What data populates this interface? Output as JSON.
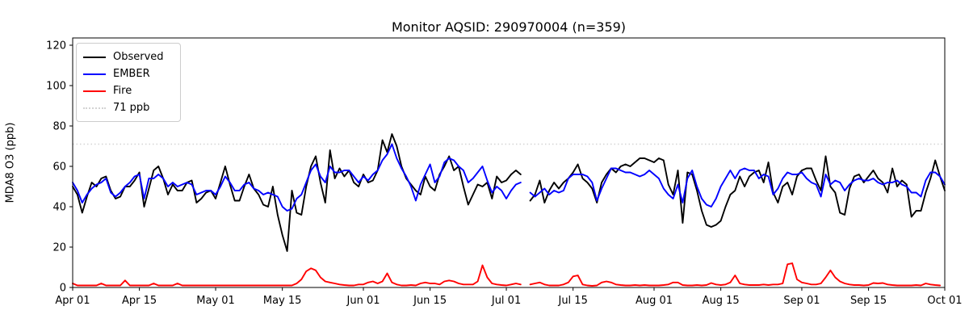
{
  "title": "Monitor AQSID: 290970004 (n=359)",
  "legend": {
    "entries": [
      {
        "label": "Observed",
        "color": "#000000",
        "style": "solid"
      },
      {
        "label": "EMBER",
        "color": "#0000ff",
        "style": "solid"
      },
      {
        "label": "Fire",
        "color": "#ff0000",
        "style": "solid"
      },
      {
        "label": "71 ppb",
        "color": "#d3d3d3",
        "style": "dotted"
      }
    ]
  },
  "chart_data": {
    "type": "line",
    "title": "Monitor AQSID: 290970004 (n=359)",
    "xlabel": "",
    "ylabel": "MDA8 O3 (ppb)",
    "x_start_label": "Apr 01",
    "x_end_label": "Oct 01",
    "x_days": 183,
    "ylim": [
      0,
      123.6
    ],
    "y_ticks": [
      0,
      20,
      40,
      60,
      80,
      100,
      120
    ],
    "x_ticks": [
      {
        "label": "Apr 01",
        "day": 0
      },
      {
        "label": "Apr 15",
        "day": 14
      },
      {
        "label": "May 01",
        "day": 30
      },
      {
        "label": "May 15",
        "day": 44
      },
      {
        "label": "Jun 01",
        "day": 61
      },
      {
        "label": "Jun 15",
        "day": 75
      },
      {
        "label": "Jul 01",
        "day": 91
      },
      {
        "label": "Jul 15",
        "day": 105
      },
      {
        "label": "Aug 01",
        "day": 122
      },
      {
        "label": "Aug 15",
        "day": 136
      },
      {
        "label": "Sep 01",
        "day": 153
      },
      {
        "label": "Sep 15",
        "day": 167
      },
      {
        "label": "Oct 01",
        "day": 183
      }
    ],
    "threshold": {
      "label": "71 ppb",
      "value": 71,
      "color": "#d3d3d3",
      "style": "dotted"
    },
    "note": "daily values Apr 01 - Oct 01; null = missing day (gap around Jul 05)",
    "series": [
      {
        "name": "Observed",
        "color": "#000000",
        "values": [
          50,
          46,
          37,
          45,
          52,
          50,
          54,
          55,
          48,
          44,
          45,
          50,
          50,
          53,
          57,
          40,
          49,
          58,
          60,
          54,
          46,
          51,
          48,
          48,
          52,
          53,
          42,
          44,
          47,
          48,
          44,
          52,
          60,
          51,
          43,
          43,
          50,
          56,
          49,
          46,
          41,
          40,
          50,
          36,
          26,
          18,
          48,
          37,
          36,
          50,
          60,
          65,
          52,
          42,
          68,
          54,
          59,
          55,
          58,
          52,
          50,
          56,
          52,
          53,
          58,
          73,
          67,
          76,
          70,
          60,
          54,
          51,
          48,
          46,
          55,
          50,
          48,
          56,
          60,
          65,
          58,
          60,
          50,
          41,
          46,
          51,
          50,
          52,
          44,
          55,
          52,
          53,
          56,
          58,
          56,
          null,
          43,
          46,
          53,
          42,
          48,
          52,
          49,
          52,
          54,
          57,
          61,
          54,
          52,
          49,
          42,
          52,
          56,
          59,
          57,
          60,
          61,
          60,
          62,
          64,
          64,
          63,
          62,
          64,
          63,
          51,
          46,
          58,
          32,
          57,
          56,
          48,
          38,
          31,
          30,
          31,
          33,
          40,
          46,
          48,
          55,
          50,
          55,
          57,
          58,
          52,
          62,
          47,
          42,
          50,
          52,
          46,
          55,
          58,
          59,
          59,
          53,
          48,
          65,
          50,
          47,
          37,
          36,
          49,
          55,
          56,
          52,
          55,
          58,
          54,
          52,
          47,
          59,
          50,
          53,
          51,
          35,
          38,
          38,
          47,
          54,
          63,
          55,
          48
        ]
      },
      {
        "name": "EMBER",
        "color": "#0000ff",
        "values": [
          52,
          48,
          42,
          46,
          49,
          51,
          52,
          54,
          47,
          45,
          47,
          50,
          52,
          55,
          56,
          44,
          54,
          54,
          56,
          54,
          50,
          52,
          50,
          51,
          52,
          51,
          46,
          47,
          48,
          48,
          46,
          50,
          55,
          52,
          48,
          48,
          51,
          52,
          49,
          48,
          46,
          47,
          46,
          45,
          40,
          38,
          39,
          44,
          46,
          52,
          58,
          61,
          55,
          52,
          60,
          57,
          57,
          58,
          58,
          55,
          52,
          55,
          53,
          56,
          58,
          63,
          66,
          71,
          64,
          59,
          55,
          50,
          43,
          51,
          56,
          61,
          52,
          55,
          62,
          64,
          63,
          60,
          58,
          52,
          54,
          57,
          60,
          53,
          47,
          50,
          48,
          44,
          48,
          51,
          52,
          null,
          47,
          45,
          47,
          49,
          46,
          48,
          47,
          48,
          54,
          56,
          56,
          56,
          55,
          52,
          43,
          49,
          54,
          59,
          59,
          58,
          57,
          57,
          56,
          55,
          56,
          58,
          56,
          54,
          49,
          46,
          44,
          51,
          42,
          54,
          58,
          50,
          44,
          41,
          40,
          44,
          50,
          54,
          58,
          54,
          58,
          59,
          58,
          58,
          54,
          56,
          55,
          46,
          49,
          54,
          57,
          56,
          56,
          57,
          54,
          52,
          51,
          45,
          56,
          51,
          53,
          52,
          48,
          51,
          53,
          54,
          53,
          53,
          54,
          52,
          51,
          52,
          52,
          53,
          51,
          50,
          47,
          47,
          45,
          53,
          57,
          57,
          55,
          51
        ]
      },
      {
        "name": "Fire",
        "color": "#ff0000",
        "values": [
          2,
          1,
          1,
          1,
          1,
          1,
          2,
          1,
          1,
          1,
          1,
          3.5,
          1,
          1,
          1,
          1,
          1,
          2,
          1,
          1,
          1,
          1,
          2,
          1,
          1,
          1,
          1,
          1,
          1,
          1,
          1,
          1,
          1,
          1,
          1,
          1,
          1,
          1,
          1,
          1,
          1,
          1,
          1,
          1,
          1,
          1,
          1,
          2,
          4,
          8,
          9.5,
          8.5,
          5,
          3,
          2.5,
          2,
          1.5,
          1.2,
          1,
          1,
          1.5,
          1.5,
          2.5,
          3,
          2,
          3,
          7,
          2.5,
          1.5,
          1,
          1,
          1.2,
          1,
          2,
          2.5,
          2,
          2,
          1.5,
          3,
          3.5,
          3,
          2,
          1.5,
          1.5,
          1.5,
          3,
          11,
          5,
          2,
          1.5,
          1.2,
          1,
          1.5,
          2,
          1.5,
          null,
          1.5,
          2,
          2.5,
          1.5,
          1,
          1,
          1,
          1.5,
          2.5,
          5.5,
          6,
          1.5,
          1,
          0.8,
          1,
          2.5,
          3,
          2.5,
          1.5,
          1.2,
          1,
          1,
          1.2,
          1,
          1.2,
          1,
          1,
          1,
          1.2,
          1.5,
          2.5,
          2.5,
          1.2,
          1,
          1,
          1.2,
          1,
          1.2,
          2.2,
          1.5,
          1.2,
          1.5,
          2.5,
          6,
          2,
          1.5,
          1.2,
          1.2,
          1.2,
          1.5,
          1.2,
          1.5,
          1.5,
          2,
          11.5,
          12,
          4,
          2.5,
          2,
          1.5,
          1.5,
          2,
          5,
          8.5,
          5,
          3,
          2,
          1.5,
          1.2,
          1.2,
          1,
          1.2,
          2.2,
          2,
          2.2,
          1.5,
          1.2,
          1,
          1,
          1,
          1,
          1.2,
          1,
          2,
          1.5,
          1.2,
          1,
          null
        ]
      }
    ],
    "legend_position": "upper left",
    "grid": false
  }
}
